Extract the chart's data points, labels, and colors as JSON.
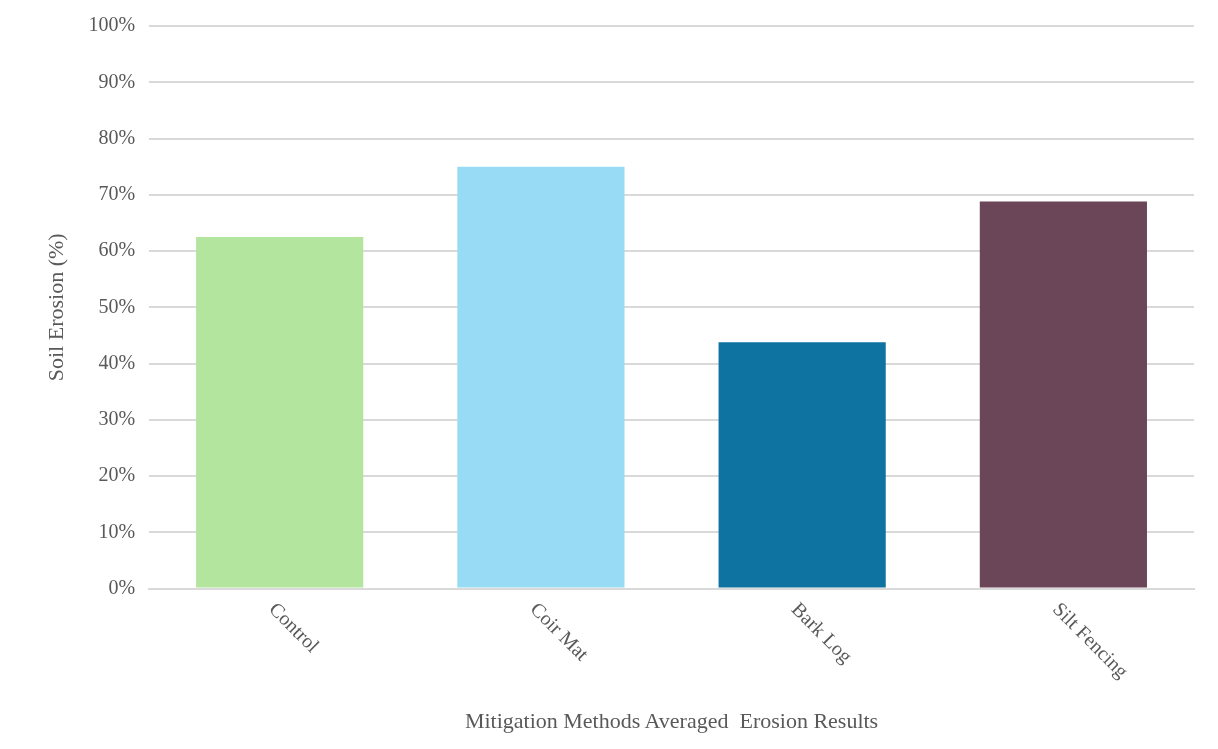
{
  "chart_data": {
    "type": "bar",
    "xlabel": "Mitigation Methods Averaged  Erosion Results",
    "ylabel": "Soil Erosion (%)",
    "categories": [
      "Control",
      "Coir Mat",
      "Bark Log",
      "Silt Fencing"
    ],
    "values": [
      62.5,
      75,
      43.8,
      68.8
    ],
    "colors": [
      "#b3e59e",
      "#97dcf4",
      "#0e73a0",
      "#6b4558"
    ],
    "ylim": [
      0,
      100
    ],
    "yticks": [
      {
        "value": 0,
        "label": "0%"
      },
      {
        "value": 10,
        "label": "10%"
      },
      {
        "value": 20,
        "label": "20%"
      },
      {
        "value": 30,
        "label": "30%"
      },
      {
        "value": 40,
        "label": "40%"
      },
      {
        "value": 50,
        "label": "50%"
      },
      {
        "value": 60,
        "label": "60%"
      },
      {
        "value": 70,
        "label": "70%"
      },
      {
        "value": 80,
        "label": "80%"
      },
      {
        "value": 90,
        "label": "90%"
      },
      {
        "value": 100,
        "label": "100%"
      }
    ],
    "grid": "y",
    "legend": false
  }
}
